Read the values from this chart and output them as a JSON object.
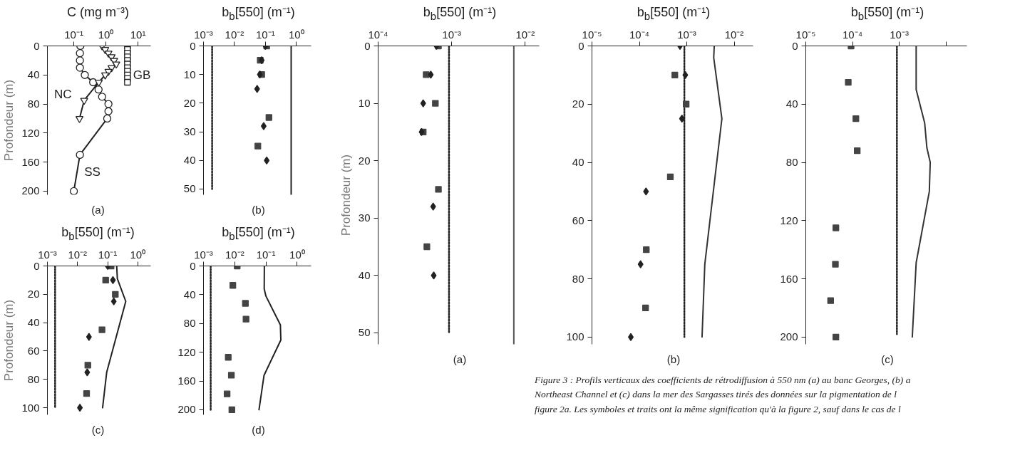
{
  "chart_data": [
    {
      "type": "line",
      "title": "C (mg m⁻³)",
      "xlabel": "(a)",
      "ylabel": "Profondeur (m)",
      "log": "x",
      "xlim": [
        0.015,
        25
      ],
      "xticks": [
        {
          "value": 0.1,
          "label": "10⁻¹"
        },
        {
          "value": 1,
          "label": "10⁰"
        },
        {
          "value": 10,
          "label": "10¹"
        }
      ],
      "ylim": [
        205,
        0
      ],
      "yticks": [
        0,
        40,
        80,
        120,
        160,
        200
      ],
      "series": [
        {
          "name": "SS",
          "color": "#222222",
          "marker": "circle",
          "x": [
            0.16,
            0.155,
            0.155,
            0.155,
            0.22,
            0.4,
            0.59,
            0.76,
            1.2,
            1.2,
            1.1,
            0.155,
            0.1
          ],
          "values": [
            0,
            10,
            20,
            30,
            40,
            50,
            60,
            70,
            80,
            90,
            100,
            150,
            200
          ]
        },
        {
          "name": "NC",
          "color": "#222222",
          "marker": "triangle",
          "x": [
            0.76,
            0.95,
            1.2,
            1.5,
            1.8,
            2.1,
            1.5,
            1.2,
            0.95,
            0.6,
            0.21,
            0.15
          ],
          "values": [
            0,
            5,
            10,
            15,
            20,
            25,
            30,
            35,
            40,
            50,
            75,
            100
          ]
        },
        {
          "name": "GB",
          "type": "scatter",
          "color": "#222222",
          "marker": "square",
          "x": [
            4.7,
            4.7,
            4.7,
            4.7,
            4.7,
            4.7,
            4.7,
            4.7,
            4.7,
            4.7,
            4.7
          ],
          "values": [
            0,
            5,
            10,
            15,
            20,
            25,
            30,
            35,
            40,
            45,
            50
          ]
        }
      ]
    },
    {
      "type": "line",
      "title": "b$_{b}$[550] (m⁻¹)",
      "xlabel": "(b)",
      "log": "x",
      "xlim": [
        0.001,
        3
      ],
      "xticks": [
        {
          "value": 0.001,
          "label": "10⁻³"
        },
        {
          "value": 0.01,
          "label": "10⁻²"
        },
        {
          "value": 0.1,
          "label": "10⁻¹"
        },
        {
          "value": 1,
          "label": "10⁰"
        }
      ],
      "ylim": [
        52,
        0
      ],
      "yticks": [
        0,
        10,
        20,
        30,
        40,
        50
      ],
      "series": [
        {
          "color": "#222222",
          "line_style": "dotted",
          "x": [
            0.0019,
            0.0019
          ],
          "values": [
            0,
            50
          ]
        },
        {
          "color": "#222222",
          "line_style": "solid",
          "x": [
            0.68,
            0.68
          ],
          "values": [
            0,
            52
          ]
        },
        {
          "type": "scatter",
          "color": "#444444",
          "marker": "square",
          "x": [
            0.11,
            0.068,
            0.076,
            0.13,
            0.057
          ],
          "values": [
            0,
            5,
            10,
            25,
            35
          ]
        },
        {
          "type": "scatter",
          "color": "#222222",
          "marker": "diamond",
          "x": [
            0.1,
            0.076,
            0.066,
            0.054,
            0.088,
            0.11
          ],
          "values": [
            0,
            5,
            10,
            15,
            28,
            40
          ]
        }
      ]
    },
    {
      "type": "line",
      "title": "b$_{b}$[550] (m⁻¹)",
      "xlabel": "(a)",
      "ylabel": "Profondeur (m)",
      "log": "x",
      "xlim": [
        0.0001,
        0.0155
      ],
      "xticks": [
        {
          "value": 0.0001,
          "label": "10⁻⁴"
        },
        {
          "value": 0.001,
          "label": "10⁻³"
        },
        {
          "value": 0.01,
          "label": "10⁻²"
        }
      ],
      "ylim": [
        52,
        0
      ],
      "yticks": [
        0,
        10,
        20,
        30,
        40,
        50
      ],
      "series": [
        {
          "color": "#222222",
          "line_style": "dotted",
          "x": [
            0.00092,
            0.00092
          ],
          "values": [
            0,
            50
          ]
        },
        {
          "color": "#555555",
          "line_style": "solid",
          "x": [
            0.007,
            0.007
          ],
          "values": [
            0,
            52
          ]
        },
        {
          "type": "scatter",
          "color": "#444444",
          "marker": "square",
          "x": [
            0.00066,
            0.00045,
            0.0006,
            0.00041,
            0.00066,
            0.00046
          ],
          "values": [
            0,
            5,
            10,
            15,
            25,
            35
          ]
        },
        {
          "type": "scatter",
          "color": "#222222",
          "marker": "diamond",
          "x": [
            0.00062,
            0.00052,
            0.00041,
            0.00039,
            0.00056,
            0.00057
          ],
          "values": [
            0,
            5,
            10,
            15,
            28,
            40
          ]
        }
      ]
    },
    {
      "type": "line",
      "title": "b$_{b}$[550] (m⁻¹)",
      "xlabel": "(b)",
      "log": "x",
      "xlim": [
        1e-05,
        0.025
      ],
      "xticks": [
        {
          "value": 1e-05,
          "label": "10⁻⁵"
        },
        {
          "value": 0.0001,
          "label": "10⁻⁴"
        },
        {
          "value": 0.001,
          "label": "10⁻³"
        },
        {
          "value": 0.01,
          "label": "10⁻²"
        }
      ],
      "ylim": [
        102.5,
        0
      ],
      "yticks": [
        0,
        20,
        40,
        60,
        80,
        100
      ],
      "series": [
        {
          "color": "#222222",
          "line_style": "dotted",
          "x": [
            0.00089,
            0.00089
          ],
          "values": [
            0,
            100
          ]
        },
        {
          "color": "#333333",
          "line_style": "solid",
          "x": [
            0.0038,
            0.0037,
            0.0055,
            0.0024,
            0.0021
          ],
          "values": [
            0,
            4,
            25,
            75,
            100
          ]
        },
        {
          "type": "scatter",
          "color": "#444444",
          "marker": "square",
          "x": [
            0.00056,
            0.00097,
            0.00045,
            0.00014,
            0.000135
          ],
          "values": [
            10,
            20,
            45,
            70,
            90
          ]
        },
        {
          "type": "scatter",
          "color": "#222222",
          "marker": "diamond",
          "x": [
            0.00072,
            0.00093,
            0.00079,
            0.000138,
            0.000106,
            6.6e-05
          ],
          "values": [
            0,
            10,
            25,
            50,
            75,
            100
          ]
        }
      ]
    },
    {
      "type": "line",
      "title": "b$_{b}$[550] (m⁻¹)",
      "xlabel": "(c)",
      "log": "x",
      "xlim": [
        1e-05,
        0.028
      ],
      "xticks": [
        {
          "value": 1e-05,
          "label": "10⁻⁵"
        },
        {
          "value": 0.0001,
          "label": "10⁻⁴"
        },
        {
          "value": 0.001,
          "label": "10⁻³"
        },
        {
          "value": 0.01,
          "label": null
        }
      ],
      "ylim": [
        205,
        0
      ],
      "yticks": [
        0,
        40,
        80,
        120,
        160,
        200
      ],
      "annotations": [
        "Figure 3 : Profils verticaux des coefficients de rétrodiffusion à 550 nm (a) au banc Georges, (b) a",
        "Northeast Channel et (c) dans la mer des Sargasses tirés des données sur la pigmentation de l",
        "figure 2a. Les symboles et traits ont la même signification qu'à la figure 2, sauf dans le cas de l"
      ],
      "series": [
        {
          "color": "#222222",
          "line_style": "dotted",
          "x": [
            0.00089,
            0.00089
          ],
          "values": [
            0,
            198
          ]
        },
        {
          "color": "#333333",
          "line_style": "solid",
          "x": [
            0.0023,
            0.0023,
            0.0035,
            0.0039,
            0.0046,
            0.0044,
            0.0023,
            0.0019
          ],
          "values": [
            0,
            30,
            53,
            70,
            80,
            100,
            149,
            200
          ]
        },
        {
          "type": "scatter",
          "color": "#444444",
          "marker": "square",
          "x": [
            9.3e-05,
            8.1e-05,
            0.000118,
            0.000126,
            4.4e-05,
            4.3e-05,
            3.4e-05,
            4.4e-05
          ],
          "values": [
            0,
            25,
            50,
            72,
            125,
            150,
            175,
            200
          ]
        }
      ]
    },
    {
      "type": "line",
      "title": "b$_{b}$[550] (m⁻¹)",
      "xlabel": "(c)",
      "ylabel": "Profondeur (m)",
      "log": "x",
      "xlim": [
        0.001,
        2.7
      ],
      "xticks": [
        {
          "value": 0.001,
          "label": "10⁻³"
        },
        {
          "value": 0.01,
          "label": "10⁻²"
        },
        {
          "value": 0.1,
          "label": "10⁻¹"
        },
        {
          "value": 1,
          "label": "10⁰"
        }
      ],
      "ylim": [
        105,
        0
      ],
      "yticks": [
        0,
        20,
        40,
        60,
        80,
        100
      ],
      "series": [
        {
          "color": "#222222",
          "line_style": "dotted",
          "x": [
            0.0018,
            0.0018
          ],
          "values": [
            0,
            100
          ]
        },
        {
          "color": "#222222",
          "line_style": "solid",
          "x": [
            0.2,
            0.21,
            0.4,
            0.093,
            0.068
          ],
          "values": [
            0,
            9,
            25,
            75,
            100
          ]
        },
        {
          "type": "scatter",
          "color": "#444444",
          "marker": "square",
          "x": [
            0.13,
            0.086,
            0.18,
            0.065,
            0.022,
            0.02
          ],
          "values": [
            0,
            10,
            20,
            45,
            70,
            90
          ]
        },
        {
          "type": "scatter",
          "color": "#222222",
          "marker": "diamond",
          "x": [
            0.1,
            0.15,
            0.16,
            0.024,
            0.021,
            0.012
          ],
          "values": [
            0,
            10,
            25,
            50,
            75,
            100
          ]
        }
      ]
    },
    {
      "type": "line",
      "title": "b$_{b}$[550] (m⁻¹)",
      "xlabel": "(d)",
      "log": "x",
      "xlim": [
        0.001,
        2.8
      ],
      "xticks": [
        {
          "value": 0.001,
          "label": "10⁻³"
        },
        {
          "value": 0.01,
          "label": "10⁻²"
        },
        {
          "value": 0.1,
          "label": "10⁻¹"
        },
        {
          "value": 1,
          "label": "10⁰"
        }
      ],
      "ylim": [
        207,
        0
      ],
      "yticks": [
        0,
        40,
        80,
        120,
        160,
        200
      ],
      "series": [
        {
          "color": "#222222",
          "line_style": "dotted",
          "x": [
            0.0017,
            0.0017
          ],
          "values": [
            0,
            200
          ]
        },
        {
          "color": "#222222",
          "line_style": "solid",
          "x": [
            0.089,
            0.088,
            0.1,
            0.29,
            0.3,
            0.087,
            0.06
          ],
          "values": [
            0,
            32,
            42,
            82,
            103,
            152,
            200
          ]
        },
        {
          "type": "scatter",
          "color": "#444444",
          "marker": "square",
          "x": [
            0.012,
            0.0087,
            0.022,
            0.023,
            0.0062,
            0.0078,
            0.0057,
            0.0081
          ],
          "values": [
            0,
            27,
            52,
            74,
            127,
            152,
            178,
            200
          ]
        }
      ]
    }
  ]
}
